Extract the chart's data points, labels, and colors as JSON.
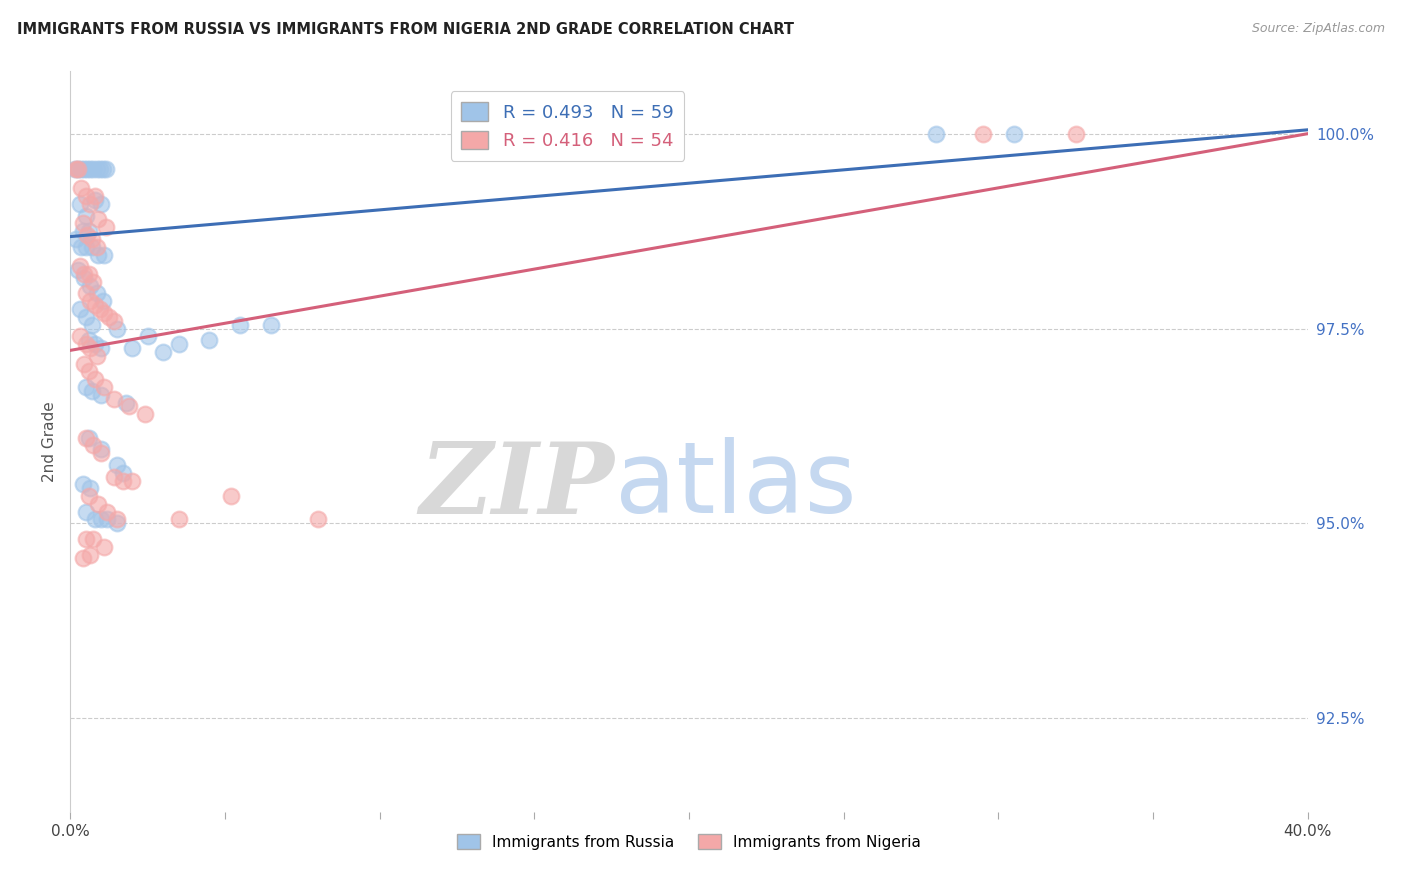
{
  "title": "IMMIGRANTS FROM RUSSIA VS IMMIGRANTS FROM NIGERIA 2ND GRADE CORRELATION CHART",
  "source": "Source: ZipAtlas.com",
  "ylabel": "2nd Grade",
  "yticks": [
    92.5,
    95.0,
    97.5,
    100.0
  ],
  "ytick_labels": [
    "92.5%",
    "95.0%",
    "97.5%",
    "100.0%"
  ],
  "xmin": 0.0,
  "xmax": 40.0,
  "ymin": 91.3,
  "ymax": 100.8,
  "russia_R": 0.493,
  "russia_N": 59,
  "nigeria_R": 0.416,
  "nigeria_N": 54,
  "russia_color": "#a0c4e8",
  "nigeria_color": "#f4a8a8",
  "russia_line_color": "#3d6eb5",
  "nigeria_line_color": "#d4607a",
  "legend_russia": "Immigrants from Russia",
  "legend_nigeria": "Immigrants from Nigeria",
  "watermark_zip": "ZIP",
  "watermark_atlas": "atlas",
  "russia_line_x0": 0.0,
  "russia_line_y0": 98.68,
  "russia_line_x1": 40.0,
  "russia_line_y1": 100.05,
  "nigeria_line_x0": 0.0,
  "nigeria_line_y0": 97.22,
  "nigeria_line_x1": 40.0,
  "nigeria_line_y1": 100.0,
  "russia_points": [
    [
      0.15,
      99.55
    ],
    [
      0.25,
      99.55
    ],
    [
      0.35,
      99.55
    ],
    [
      0.45,
      99.55
    ],
    [
      0.55,
      99.55
    ],
    [
      0.65,
      99.55
    ],
    [
      0.75,
      99.55
    ],
    [
      0.85,
      99.55
    ],
    [
      0.95,
      99.55
    ],
    [
      1.05,
      99.55
    ],
    [
      1.15,
      99.55
    ],
    [
      0.3,
      99.1
    ],
    [
      0.5,
      98.95
    ],
    [
      0.8,
      99.15
    ],
    [
      1.0,
      99.1
    ],
    [
      0.4,
      98.75
    ],
    [
      0.6,
      98.75
    ],
    [
      0.2,
      98.65
    ],
    [
      0.35,
      98.55
    ],
    [
      0.5,
      98.55
    ],
    [
      0.7,
      98.55
    ],
    [
      0.9,
      98.45
    ],
    [
      1.1,
      98.45
    ],
    [
      0.25,
      98.25
    ],
    [
      0.45,
      98.15
    ],
    [
      0.65,
      98.05
    ],
    [
      0.85,
      97.95
    ],
    [
      1.05,
      97.85
    ],
    [
      0.3,
      97.75
    ],
    [
      0.5,
      97.65
    ],
    [
      0.7,
      97.55
    ],
    [
      1.5,
      97.5
    ],
    [
      2.5,
      97.4
    ],
    [
      3.5,
      97.3
    ],
    [
      0.6,
      97.35
    ],
    [
      0.8,
      97.3
    ],
    [
      1.0,
      97.25
    ],
    [
      2.0,
      97.25
    ],
    [
      3.0,
      97.2
    ],
    [
      0.5,
      96.75
    ],
    [
      0.7,
      96.7
    ],
    [
      1.0,
      96.65
    ],
    [
      1.8,
      96.55
    ],
    [
      4.5,
      97.35
    ],
    [
      0.6,
      96.1
    ],
    [
      1.0,
      95.95
    ],
    [
      1.5,
      95.75
    ],
    [
      1.7,
      95.65
    ],
    [
      0.5,
      95.15
    ],
    [
      0.8,
      95.05
    ],
    [
      1.0,
      95.05
    ],
    [
      1.2,
      95.05
    ],
    [
      1.5,
      95.0
    ],
    [
      5.5,
      97.55
    ],
    [
      6.5,
      97.55
    ],
    [
      28.0,
      100.0
    ],
    [
      30.5,
      100.0
    ],
    [
      0.4,
      95.5
    ],
    [
      0.65,
      95.45
    ]
  ],
  "nigeria_points": [
    [
      0.2,
      99.55
    ],
    [
      0.35,
      99.3
    ],
    [
      0.5,
      99.2
    ],
    [
      0.65,
      99.1
    ],
    [
      0.4,
      98.85
    ],
    [
      0.55,
      98.7
    ],
    [
      0.7,
      98.65
    ],
    [
      0.85,
      98.55
    ],
    [
      0.3,
      98.3
    ],
    [
      0.45,
      98.2
    ],
    [
      0.6,
      98.2
    ],
    [
      0.75,
      98.1
    ],
    [
      0.5,
      97.95
    ],
    [
      0.65,
      97.85
    ],
    [
      0.8,
      97.8
    ],
    [
      0.95,
      97.75
    ],
    [
      1.1,
      97.7
    ],
    [
      1.25,
      97.65
    ],
    [
      1.4,
      97.6
    ],
    [
      0.3,
      97.4
    ],
    [
      0.5,
      97.3
    ],
    [
      0.65,
      97.25
    ],
    [
      0.85,
      97.15
    ],
    [
      0.45,
      97.05
    ],
    [
      0.6,
      96.95
    ],
    [
      0.8,
      96.85
    ],
    [
      1.1,
      96.75
    ],
    [
      1.4,
      96.6
    ],
    [
      1.9,
      96.5
    ],
    [
      2.4,
      96.4
    ],
    [
      0.5,
      96.1
    ],
    [
      0.75,
      96.0
    ],
    [
      1.0,
      95.9
    ],
    [
      1.4,
      95.6
    ],
    [
      1.7,
      95.55
    ],
    [
      2.0,
      95.55
    ],
    [
      0.6,
      95.35
    ],
    [
      0.9,
      95.25
    ],
    [
      1.2,
      95.15
    ],
    [
      1.5,
      95.05
    ],
    [
      5.2,
      95.35
    ],
    [
      0.5,
      94.8
    ],
    [
      0.75,
      94.8
    ],
    [
      1.1,
      94.7
    ],
    [
      0.4,
      94.55
    ],
    [
      0.65,
      94.6
    ],
    [
      3.5,
      95.05
    ],
    [
      29.5,
      100.0
    ],
    [
      32.5,
      100.0
    ],
    [
      8.0,
      95.05
    ],
    [
      0.9,
      98.9
    ],
    [
      1.15,
      98.8
    ],
    [
      0.25,
      99.55
    ],
    [
      0.8,
      99.2
    ]
  ]
}
